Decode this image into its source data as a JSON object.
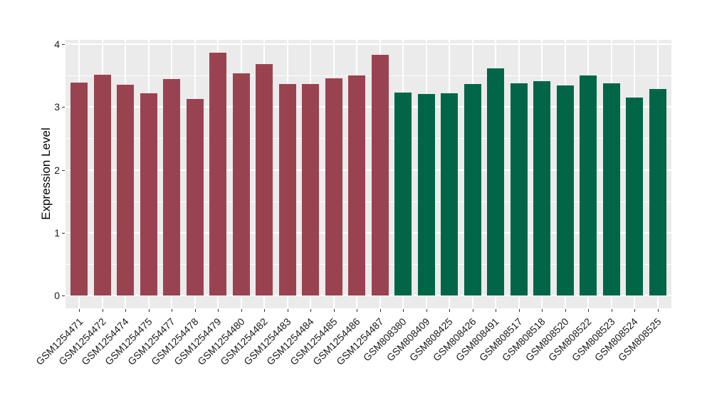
{
  "chart_data": {
    "type": "bar",
    "title": "",
    "xlabel": "",
    "ylabel": "Expression Level",
    "ylim": [
      0,
      4
    ],
    "yticks": [
      0,
      1,
      2,
      3,
      4
    ],
    "yticks_minor": [
      0.5,
      1.5,
      2.5,
      3.5
    ],
    "grid": true,
    "legend_position": "none",
    "panel_background_color": "#EBEBEB",
    "grid_color": "#FFFFFF",
    "tick_color": "#333333",
    "group_colors": {
      "red_group": "#9A4350",
      "green_group": "#006647"
    },
    "bars": [
      {
        "label": "GSM1254471",
        "value": 3.39,
        "color": "#9A4350"
      },
      {
        "label": "GSM1254472",
        "value": 3.51,
        "color": "#9A4350"
      },
      {
        "label": "GSM1254474",
        "value": 3.35,
        "color": "#9A4350"
      },
      {
        "label": "GSM1254475",
        "value": 3.22,
        "color": "#9A4350"
      },
      {
        "label": "GSM1254477",
        "value": 3.44,
        "color": "#9A4350"
      },
      {
        "label": "GSM1254478",
        "value": 3.13,
        "color": "#9A4350"
      },
      {
        "label": "GSM1254479",
        "value": 3.86,
        "color": "#9A4350"
      },
      {
        "label": "GSM1254480",
        "value": 3.53,
        "color": "#9A4350"
      },
      {
        "label": "GSM1254482",
        "value": 3.68,
        "color": "#9A4350"
      },
      {
        "label": "GSM1254483",
        "value": 3.36,
        "color": "#9A4350"
      },
      {
        "label": "GSM1254484",
        "value": 3.37,
        "color": "#9A4350"
      },
      {
        "label": "GSM1254485",
        "value": 3.46,
        "color": "#9A4350"
      },
      {
        "label": "GSM1254486",
        "value": 3.5,
        "color": "#9A4350"
      },
      {
        "label": "GSM1254487",
        "value": 3.83,
        "color": "#9A4350"
      },
      {
        "label": "GSM808380",
        "value": 3.23,
        "color": "#006647"
      },
      {
        "label": "GSM808409",
        "value": 3.21,
        "color": "#006647"
      },
      {
        "label": "GSM808425",
        "value": 3.22,
        "color": "#006647"
      },
      {
        "label": "GSM808426",
        "value": 3.37,
        "color": "#006647"
      },
      {
        "label": "GSM808491",
        "value": 3.62,
        "color": "#006647"
      },
      {
        "label": "GSM808517",
        "value": 3.38,
        "color": "#006647"
      },
      {
        "label": "GSM808518",
        "value": 3.41,
        "color": "#006647"
      },
      {
        "label": "GSM808520",
        "value": 3.34,
        "color": "#006647"
      },
      {
        "label": "GSM808522",
        "value": 3.5,
        "color": "#006647"
      },
      {
        "label": "GSM808523",
        "value": 3.38,
        "color": "#006647"
      },
      {
        "label": "GSM808524",
        "value": 3.15,
        "color": "#006647"
      },
      {
        "label": "GSM808525",
        "value": 3.29,
        "color": "#006647"
      }
    ]
  }
}
